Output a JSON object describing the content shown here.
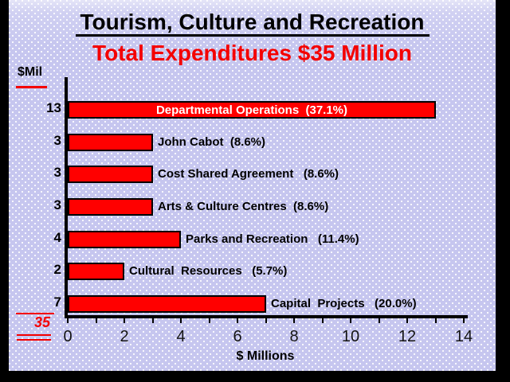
{
  "header": {
    "title": "Tourism, Culture and Recreation",
    "subtitle": "Total Expenditures $35 Million"
  },
  "chart_data": {
    "type": "bar",
    "orientation": "horizontal",
    "title": "Tourism, Culture and Recreation",
    "subtitle": "Total Expenditures $35 Million",
    "unit_header": "$Mil",
    "xlabel": "$ Millions",
    "xlim": [
      0,
      14
    ],
    "x_tick_step_minor": 1,
    "x_tick_labels": [
      "0",
      "2",
      "4",
      "6",
      "8",
      "10",
      "12",
      "14"
    ],
    "grid": "off",
    "legend": "none",
    "categories": [
      "Departmental Operations",
      "John Cabot",
      "Cost Shared Agreement",
      "Arts & Culture Centres",
      "Parks and Recreation",
      "Cultural Resources",
      "Capital Projects"
    ],
    "values": [
      13,
      3,
      3,
      3,
      4,
      2,
      7
    ],
    "percent_labels": [
      "37.1%",
      "8.6%",
      "8.6%",
      "8.6%",
      "11.4%",
      "5.7%",
      "20.0%"
    ],
    "rows": [
      {
        "value": 13,
        "value_label": "13",
        "bar_label": "Departmental Operations  (37.1%)",
        "label_inside": true
      },
      {
        "value": 3,
        "value_label": "3",
        "bar_label": "John Cabot  (8.6%)",
        "label_inside": false
      },
      {
        "value": 3,
        "value_label": "3",
        "bar_label": "Cost Shared Agreement   (8.6%)",
        "label_inside": false
      },
      {
        "value": 3,
        "value_label": "3",
        "bar_label": "Arts & Culture Centres  (8.6%)",
        "label_inside": false
      },
      {
        "value": 4,
        "value_label": "4",
        "bar_label": "Parks and Recreation   (11.4%)",
        "label_inside": false
      },
      {
        "value": 2,
        "value_label": "2",
        "bar_label": "Cultural  Resources   (5.7%)",
        "label_inside": false
      },
      {
        "value": 7,
        "value_label": "7",
        "bar_label": "Capital  Projects   (20.0%)",
        "label_inside": false
      }
    ],
    "total_label": "35",
    "total_value": 35,
    "colors": {
      "bar": "#ff0000",
      "bar_label_inside": "#ffffff",
      "accent_red": "#f40000",
      "text": "#000000",
      "background": "#c6c6ef",
      "frame": "#000000"
    }
  }
}
